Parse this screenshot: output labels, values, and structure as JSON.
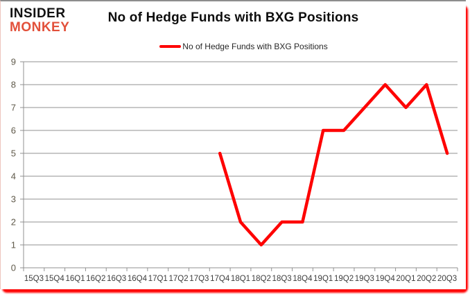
{
  "logo": {
    "line1": "INSIDER",
    "line2": "MONKEY",
    "line2_color": "#e2503a"
  },
  "header": {
    "title": "No of Hedge Funds with BXG Positions"
  },
  "legend": {
    "label": "No of Hedge Funds with BXG Positions",
    "line_color": "#fe0101"
  },
  "chart_data": {
    "type": "line",
    "title": "No of Hedge Funds with BXG Positions",
    "categories": [
      "15Q3",
      "15Q4",
      "16Q1",
      "16Q2",
      "16Q3",
      "16Q4",
      "17Q1",
      "17Q2",
      "17Q3",
      "17Q4",
      "18Q1",
      "18Q2",
      "18Q3",
      "18Q4",
      "19Q1",
      "19Q2",
      "19Q3",
      "19Q4",
      "20Q1",
      "20Q2",
      "20Q3"
    ],
    "series": [
      {
        "name": "No of Hedge Funds with BXG Positions",
        "color": "#fe0101",
        "values": [
          null,
          null,
          null,
          null,
          null,
          null,
          null,
          null,
          null,
          5,
          2,
          1,
          2,
          2,
          6,
          6,
          7,
          8,
          7,
          8,
          5
        ]
      }
    ],
    "xlabel": "",
    "ylabel": "",
    "ylim": [
      0,
      9
    ],
    "y_ticks": [
      0,
      1,
      2,
      3,
      4,
      5,
      6,
      7,
      8,
      9
    ],
    "grid": true,
    "legend_position": "top",
    "grid_color": "#919191",
    "y_label_color": "#5f594a",
    "x_label_color": "#3c3c3c"
  },
  "frame": {
    "shadow_color": "#fe0000",
    "top_border_color": "#8d8d8d"
  }
}
